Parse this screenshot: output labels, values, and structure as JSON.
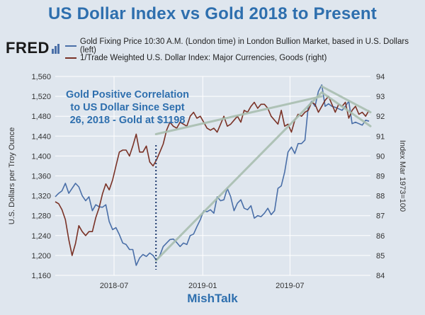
{
  "chart_data": {
    "type": "line",
    "title": "US Dollar Index vs Gold 2018 to Present",
    "source_logo": "FRED",
    "brand": "MishTalk",
    "annotation": "Gold Positive Correlation\nto US Dollar Since Sept\n26, 2018 - Gold at $1198",
    "ylabel_left": "U.S. Dollars per Troy Ounce",
    "ylabel_right": "Index Mar 1973=100",
    "xticks": [
      "2018-07",
      "2019-01",
      "2019-07"
    ],
    "yticks_left": [
      1160,
      1200,
      1240,
      1280,
      1320,
      1360,
      1400,
      1440,
      1480,
      1520,
      1560
    ],
    "yticks_right": [
      84,
      85,
      86,
      87,
      88,
      89,
      90,
      91,
      92,
      93,
      94
    ],
    "ylim_left": [
      1160,
      1560
    ],
    "ylim_right": [
      84,
      94
    ],
    "xlim": [
      "2018-03-01",
      "2019-12-15"
    ],
    "grid": true,
    "legend_placement": "top-left",
    "colors": {
      "gold": "#4a6fa8",
      "dollar": "#7a3226",
      "trend": "#a9bfb0",
      "annotation": "#2e6fae",
      "marker": "#1e3a6e",
      "background": "#dfe6ee"
    },
    "series": [
      {
        "name": "Gold Fixing Price 10:30 A.M. (London time) in London Bullion Market, based in U.S. Dollars (left)",
        "axis": "left",
        "points": [
          [
            "2018-03-01",
            1318
          ],
          [
            "2018-03-08",
            1325
          ],
          [
            "2018-03-15",
            1330
          ],
          [
            "2018-03-22",
            1345
          ],
          [
            "2018-03-29",
            1325
          ],
          [
            "2018-04-05",
            1335
          ],
          [
            "2018-04-12",
            1345
          ],
          [
            "2018-04-19",
            1338
          ],
          [
            "2018-04-26",
            1320
          ],
          [
            "2018-05-03",
            1310
          ],
          [
            "2018-05-10",
            1318
          ],
          [
            "2018-05-17",
            1290
          ],
          [
            "2018-05-24",
            1302
          ],
          [
            "2018-05-31",
            1298
          ],
          [
            "2018-06-07",
            1297
          ],
          [
            "2018-06-14",
            1302
          ],
          [
            "2018-06-21",
            1268
          ],
          [
            "2018-06-28",
            1252
          ],
          [
            "2018-07-05",
            1256
          ],
          [
            "2018-07-12",
            1242
          ],
          [
            "2018-07-19",
            1225
          ],
          [
            "2018-07-26",
            1222
          ],
          [
            "2018-08-02",
            1212
          ],
          [
            "2018-08-09",
            1212
          ],
          [
            "2018-08-16",
            1180
          ],
          [
            "2018-08-23",
            1195
          ],
          [
            "2018-08-30",
            1202
          ],
          [
            "2018-09-06",
            1198
          ],
          [
            "2018-09-13",
            1205
          ],
          [
            "2018-09-20",
            1200
          ],
          [
            "2018-09-27",
            1190
          ],
          [
            "2018-10-04",
            1200
          ],
          [
            "2018-10-11",
            1218
          ],
          [
            "2018-10-18",
            1225
          ],
          [
            "2018-10-25",
            1232
          ],
          [
            "2018-11-01",
            1233
          ],
          [
            "2018-11-08",
            1226
          ],
          [
            "2018-11-15",
            1218
          ],
          [
            "2018-11-22",
            1225
          ],
          [
            "2018-11-29",
            1222
          ],
          [
            "2018-12-06",
            1240
          ],
          [
            "2018-12-13",
            1243
          ],
          [
            "2018-12-20",
            1258
          ],
          [
            "2018-12-27",
            1272
          ],
          [
            "2019-01-03",
            1290
          ],
          [
            "2019-01-10",
            1288
          ],
          [
            "2019-01-17",
            1292
          ],
          [
            "2019-01-24",
            1285
          ],
          [
            "2019-01-31",
            1318
          ],
          [
            "2019-02-07",
            1310
          ],
          [
            "2019-02-14",
            1312
          ],
          [
            "2019-02-21",
            1335
          ],
          [
            "2019-02-28",
            1318
          ],
          [
            "2019-03-07",
            1290
          ],
          [
            "2019-03-14",
            1305
          ],
          [
            "2019-03-21",
            1312
          ],
          [
            "2019-03-28",
            1295
          ],
          [
            "2019-04-04",
            1292
          ],
          [
            "2019-04-11",
            1300
          ],
          [
            "2019-04-18",
            1275
          ],
          [
            "2019-04-25",
            1280
          ],
          [
            "2019-05-02",
            1278
          ],
          [
            "2019-05-09",
            1285
          ],
          [
            "2019-05-16",
            1295
          ],
          [
            "2019-05-23",
            1282
          ],
          [
            "2019-05-30",
            1290
          ],
          [
            "2019-06-06",
            1335
          ],
          [
            "2019-06-13",
            1340
          ],
          [
            "2019-06-20",
            1368
          ],
          [
            "2019-06-27",
            1408
          ],
          [
            "2019-07-04",
            1418
          ],
          [
            "2019-07-11",
            1405
          ],
          [
            "2019-07-18",
            1425
          ],
          [
            "2019-07-25",
            1425
          ],
          [
            "2019-08-01",
            1432
          ],
          [
            "2019-08-08",
            1500
          ],
          [
            "2019-08-15",
            1510
          ],
          [
            "2019-08-22",
            1500
          ],
          [
            "2019-08-29",
            1530
          ],
          [
            "2019-09-05",
            1543
          ],
          [
            "2019-09-12",
            1500
          ],
          [
            "2019-09-19",
            1505
          ],
          [
            "2019-09-26",
            1500
          ],
          [
            "2019-10-03",
            1498
          ],
          [
            "2019-10-10",
            1495
          ],
          [
            "2019-10-17",
            1492
          ],
          [
            "2019-10-24",
            1500
          ],
          [
            "2019-10-31",
            1510
          ],
          [
            "2019-11-07",
            1465
          ],
          [
            "2019-11-14",
            1468
          ],
          [
            "2019-11-21",
            1465
          ],
          [
            "2019-11-28",
            1462
          ],
          [
            "2019-12-05",
            1472
          ],
          [
            "2019-12-12",
            1470
          ]
        ]
      },
      {
        "name": "1/Trade Weighted U.S. Dollar Index: Major Currencies, Goods (right)",
        "axis": "right",
        "points": [
          [
            "2018-03-01",
            87.7
          ],
          [
            "2018-03-08",
            87.6
          ],
          [
            "2018-03-15",
            87.3
          ],
          [
            "2018-03-22",
            86.8
          ],
          [
            "2018-03-29",
            85.8
          ],
          [
            "2018-04-05",
            85.0
          ],
          [
            "2018-04-12",
            85.6
          ],
          [
            "2018-04-19",
            86.5
          ],
          [
            "2018-04-26",
            86.2
          ],
          [
            "2018-05-03",
            86.0
          ],
          [
            "2018-05-10",
            86.2
          ],
          [
            "2018-05-17",
            86.2
          ],
          [
            "2018-05-24",
            86.9
          ],
          [
            "2018-05-31",
            87.4
          ],
          [
            "2018-06-07",
            88.1
          ],
          [
            "2018-06-14",
            88.6
          ],
          [
            "2018-06-21",
            88.3
          ],
          [
            "2018-06-28",
            88.8
          ],
          [
            "2018-07-05",
            89.5
          ],
          [
            "2018-07-12",
            90.2
          ],
          [
            "2018-07-19",
            90.3
          ],
          [
            "2018-07-26",
            90.3
          ],
          [
            "2018-08-02",
            90.0
          ],
          [
            "2018-08-09",
            90.5
          ],
          [
            "2018-08-16",
            91.1
          ],
          [
            "2018-08-23",
            90.2
          ],
          [
            "2018-08-30",
            90.2
          ],
          [
            "2018-09-06",
            90.5
          ],
          [
            "2018-09-13",
            89.7
          ],
          [
            "2018-09-20",
            89.5
          ],
          [
            "2018-09-27",
            89.8
          ],
          [
            "2018-10-04",
            90.2
          ],
          [
            "2018-10-11",
            90.6
          ],
          [
            "2018-10-18",
            91.3
          ],
          [
            "2018-10-25",
            91.7
          ],
          [
            "2018-11-01",
            91.5
          ],
          [
            "2018-11-08",
            91.4
          ],
          [
            "2018-11-15",
            91.7
          ],
          [
            "2018-11-22",
            91.6
          ],
          [
            "2018-11-29",
            91.5
          ],
          [
            "2018-12-06",
            92.0
          ],
          [
            "2018-12-13",
            92.2
          ],
          [
            "2018-12-20",
            91.9
          ],
          [
            "2018-12-27",
            92.0
          ],
          [
            "2019-01-03",
            91.7
          ],
          [
            "2019-01-10",
            91.4
          ],
          [
            "2019-01-17",
            91.3
          ],
          [
            "2019-01-24",
            91.4
          ],
          [
            "2019-01-31",
            91.2
          ],
          [
            "2019-02-07",
            91.6
          ],
          [
            "2019-02-14",
            92.0
          ],
          [
            "2019-02-21",
            91.5
          ],
          [
            "2019-02-28",
            91.6
          ],
          [
            "2019-03-07",
            91.8
          ],
          [
            "2019-03-14",
            92.0
          ],
          [
            "2019-03-21",
            91.7
          ],
          [
            "2019-03-28",
            92.3
          ],
          [
            "2019-04-04",
            92.2
          ],
          [
            "2019-04-11",
            92.5
          ],
          [
            "2019-04-18",
            92.7
          ],
          [
            "2019-04-25",
            92.4
          ],
          [
            "2019-05-02",
            92.6
          ],
          [
            "2019-05-09",
            92.6
          ],
          [
            "2019-05-16",
            92.4
          ],
          [
            "2019-05-23",
            92.0
          ],
          [
            "2019-05-30",
            91.8
          ],
          [
            "2019-06-06",
            91.6
          ],
          [
            "2019-06-13",
            92.3
          ],
          [
            "2019-06-20",
            91.5
          ],
          [
            "2019-06-27",
            91.6
          ],
          [
            "2019-07-04",
            91.2
          ],
          [
            "2019-07-11",
            91.8
          ],
          [
            "2019-07-18",
            92.1
          ],
          [
            "2019-07-25",
            92.0
          ],
          [
            "2019-08-01",
            92.2
          ],
          [
            "2019-08-08",
            92.3
          ],
          [
            "2019-08-15",
            92.7
          ],
          [
            "2019-08-22",
            92.6
          ],
          [
            "2019-08-29",
            92.2
          ],
          [
            "2019-09-05",
            92.5
          ],
          [
            "2019-09-12",
            92.8
          ],
          [
            "2019-09-19",
            93.0
          ],
          [
            "2019-09-26",
            92.6
          ],
          [
            "2019-10-03",
            92.2
          ],
          [
            "2019-10-10",
            92.6
          ],
          [
            "2019-10-17",
            92.5
          ],
          [
            "2019-10-24",
            92.7
          ],
          [
            "2019-10-31",
            91.9
          ],
          [
            "2019-11-07",
            92.3
          ],
          [
            "2019-11-14",
            92.5
          ],
          [
            "2019-11-21",
            92.1
          ],
          [
            "2019-11-28",
            92.2
          ],
          [
            "2019-12-05",
            92.0
          ],
          [
            "2019-12-12",
            92.3
          ]
        ]
      }
    ],
    "trendlines": [
      {
        "axis": "left",
        "from": [
          "2018-09-26",
          1190
        ],
        "to": [
          "2019-09-05",
          1528
        ]
      },
      {
        "axis": "right",
        "from": [
          "2018-09-26",
          91.1
        ],
        "to": [
          "2019-09-05",
          93.0
        ]
      },
      {
        "axis": "right",
        "from": [
          "2019-09-05",
          93.2
        ],
        "to": [
          "2019-12-15",
          91.5
        ]
      },
      {
        "axis": "left",
        "from": [
          "2019-09-05",
          1540
        ],
        "to": [
          "2019-12-15",
          1488
        ]
      }
    ],
    "vline": {
      "date": "2018-09-26",
      "style": "dotted"
    }
  }
}
